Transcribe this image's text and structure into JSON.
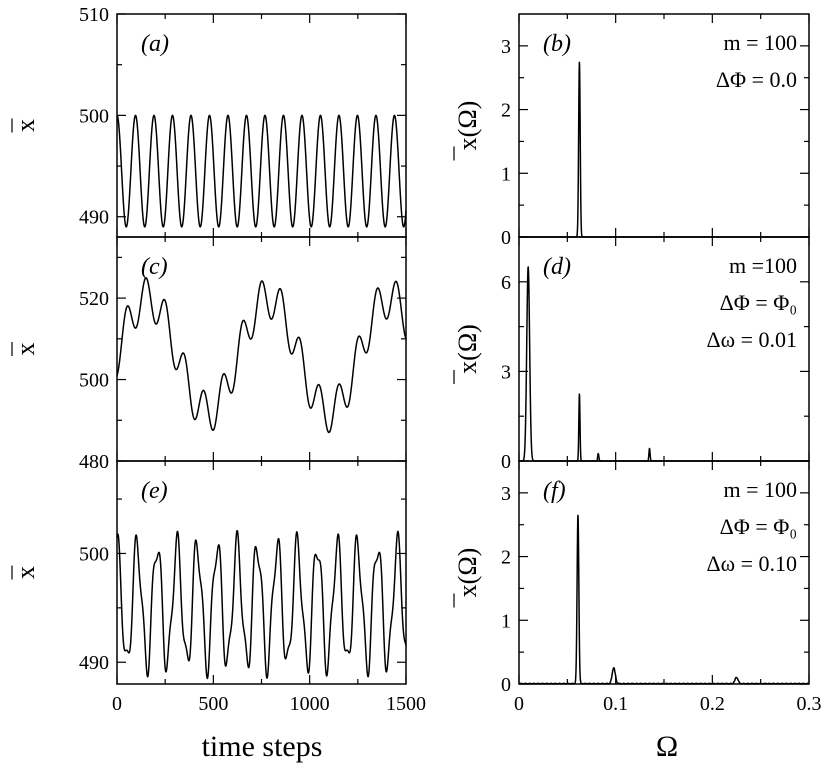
{
  "figure": {
    "left_xlabel": "time steps",
    "right_xlabel": "Ω",
    "left_ylabel": "x",
    "right_ylabel": "x(Ω)"
  },
  "chart_data": [
    {
      "id": "a",
      "type": "line",
      "panel_label": "(a)",
      "xlim": [
        0,
        1500
      ],
      "ylim": [
        488,
        510
      ],
      "yticks": [
        490,
        500,
        510
      ],
      "ytick_labels": [
        "490",
        "500",
        "510"
      ],
      "xticks": [],
      "xtick_labels": [],
      "annotations": [],
      "signal": {
        "mean": 494.5,
        "components": [
          {
            "amp": 5.5,
            "period": 96,
            "phase": 1.5708
          }
        ]
      },
      "peaks": [],
      "noise": 0
    },
    {
      "id": "b",
      "type": "line",
      "panel_label": "(b)",
      "xlim": [
        0,
        0.3
      ],
      "ylim": [
        0,
        3.5
      ],
      "yticks": [
        0,
        1,
        2,
        3
      ],
      "ytick_labels": [
        "0",
        "1",
        "2",
        "3"
      ],
      "xticks": [],
      "xtick_labels": [],
      "annotations": [
        "m = 100",
        "ΔΦ = 0.0"
      ],
      "peaks": [
        {
          "x": 0.0625,
          "h": 2.75,
          "w": 0.0008
        }
      ],
      "noise": 0
    },
    {
      "id": "c",
      "type": "line",
      "panel_label": "(c)",
      "xlim": [
        0,
        1500
      ],
      "ylim": [
        480,
        535
      ],
      "yticks": [
        480,
        500,
        520
      ],
      "ytick_labels": [
        "480",
        "500",
        "520"
      ],
      "xticks": [],
      "xtick_labels": [],
      "annotations": [],
      "signal": {
        "mean": 506,
        "components": [
          {
            "amp": 14,
            "period": 628,
            "phase": 0
          },
          {
            "amp": 5,
            "period": 100,
            "phase": 4.71
          }
        ]
      },
      "peaks": [],
      "noise": 0
    },
    {
      "id": "d",
      "type": "line",
      "panel_label": "(d)",
      "xlim": [
        0,
        0.3
      ],
      "ylim": [
        0,
        7.5
      ],
      "yticks": [
        0,
        3,
        6
      ],
      "ytick_labels": [
        "0",
        "3",
        "6"
      ],
      "xticks": [],
      "xtick_labels": [],
      "annotations": [
        "m =100",
        "ΔΦ = Φ₀",
        "Δω = 0.01"
      ],
      "peaks": [
        {
          "x": 0.0095,
          "h": 6.5,
          "w": 0.0015
        },
        {
          "x": 0.0625,
          "h": 2.25,
          "w": 0.0006
        },
        {
          "x": 0.082,
          "h": 0.25,
          "w": 0.0006
        },
        {
          "x": 0.135,
          "h": 0.42,
          "w": 0.0006
        }
      ],
      "noise": 0
    },
    {
      "id": "e",
      "type": "line",
      "panel_label": "(e)",
      "xlim": [
        0,
        1500
      ],
      "ylim": [
        488,
        508.5
      ],
      "yticks": [
        490,
        500
      ],
      "ytick_labels": [
        "490",
        "500"
      ],
      "xticks": [
        0,
        500,
        1000,
        1500
      ],
      "xtick_labels": [
        "0",
        "500",
        "1000",
        "1500"
      ],
      "annotations": [],
      "signal": {
        "mean": 495.3,
        "components": [
          {
            "amp": 5.5,
            "period": 104,
            "phase": 1.5708
          },
          {
            "amp": 1.3,
            "period": 44,
            "phase": 0.5
          }
        ]
      },
      "peaks": [],
      "noise": 0
    },
    {
      "id": "f",
      "type": "line",
      "panel_label": "(f)",
      "xlim": [
        0,
        0.3
      ],
      "ylim": [
        0,
        3.5
      ],
      "yticks": [
        0,
        1,
        2,
        3
      ],
      "ytick_labels": [
        "0",
        "1",
        "2",
        "3"
      ],
      "xticks": [
        0,
        0.1,
        0.2,
        0.3
      ],
      "xtick_labels": [
        "0",
        "0.1",
        "0.2",
        "0.3"
      ],
      "annotations": [
        "m = 100",
        "ΔΦ = Φ₀",
        "Δω = 0.10"
      ],
      "peaks": [
        {
          "x": 0.061,
          "h": 2.65,
          "w": 0.0009
        },
        {
          "x": 0.098,
          "h": 0.25,
          "w": 0.0016
        },
        {
          "x": 0.225,
          "h": 0.1,
          "w": 0.0016
        }
      ],
      "noise": 0.012
    }
  ]
}
